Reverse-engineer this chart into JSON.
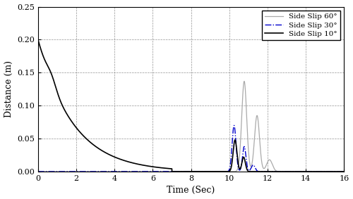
{
  "title": "",
  "xlabel": "Time (Sec)",
  "ylabel": "Distance (m)",
  "xlim": [
    0,
    16
  ],
  "ylim": [
    0,
    0.25
  ],
  "xticks": [
    0,
    2,
    4,
    6,
    8,
    10,
    12,
    14,
    16
  ],
  "yticks": [
    0,
    0.05,
    0.1,
    0.15,
    0.2,
    0.25
  ],
  "legend": [
    {
      "label": "Side Slip 60°",
      "color": "#aaaaaa",
      "linestyle": "-",
      "linewidth": 0.9
    },
    {
      "label": "Side Slip 30°",
      "color": "#0000cc",
      "linestyle": "-.",
      "linewidth": 1.0
    },
    {
      "label": "Side Slip 10°",
      "color": "#000000",
      "linestyle": "-",
      "linewidth": 1.2
    }
  ],
  "background_color": "#ffffff",
  "figure_size": [
    5.0,
    2.83
  ],
  "dpi": 100
}
